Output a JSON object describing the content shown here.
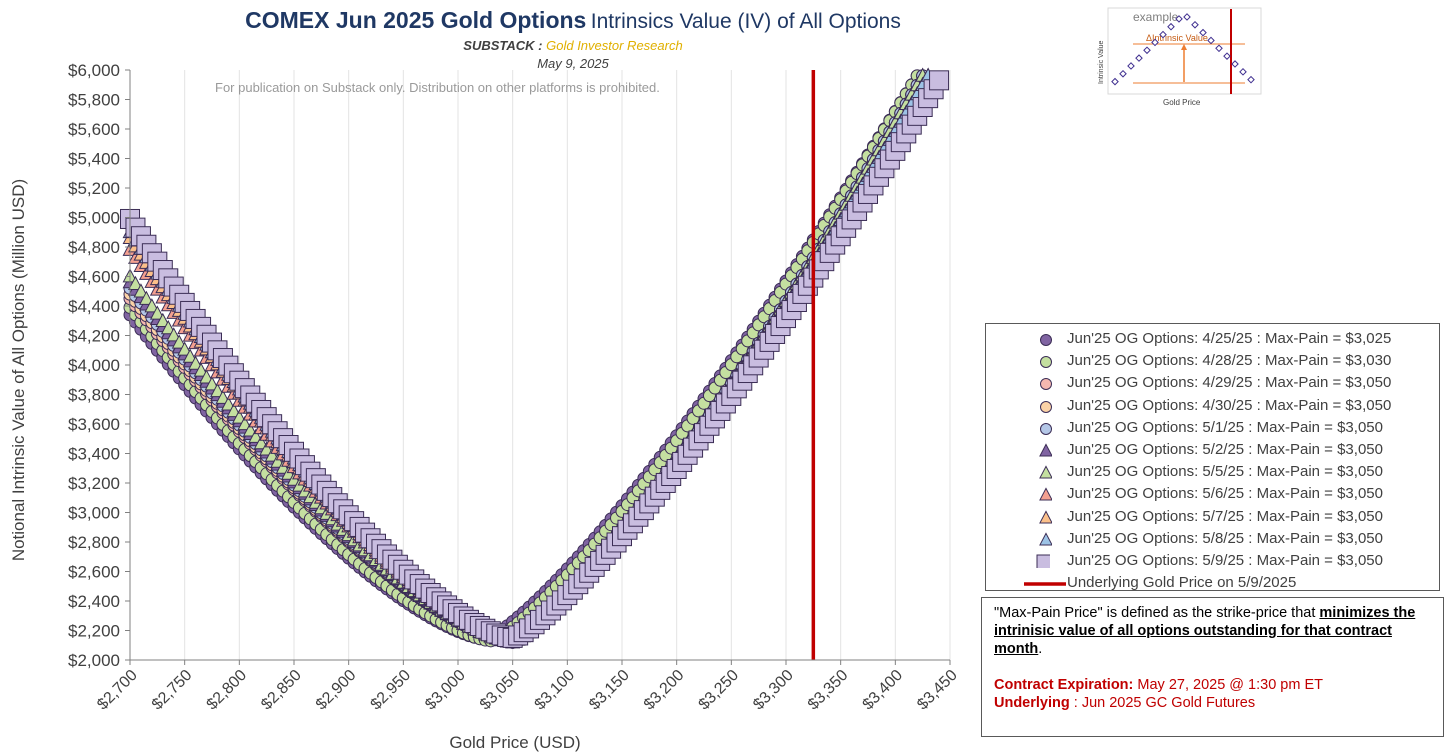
{
  "title": {
    "bold": "COMEX Jun 2025 Gold Options",
    "rest": "Intrinsics Value (IV) of All Options"
  },
  "subtitle": {
    "label": "SUBSTACK :",
    "value": "Gold Investor Research"
  },
  "date": "May 9, 2025",
  "watermark": "For publication on Substack only. Distribution on other platforms is prohibited.",
  "chart_data": {
    "type": "scatter",
    "xlabel": "Gold Price (USD)",
    "ylabel": "Notional Intrinsic Value of All Options (Million USD)",
    "xlim": [
      2700,
      3450
    ],
    "ylim": [
      2000,
      6000
    ],
    "x_ticks": [
      "$2,700",
      "$2,750",
      "$2,800",
      "$2,850",
      "$2,900",
      "$2,950",
      "$3,000",
      "$3,050",
      "$3,100",
      "$3,150",
      "$3,200",
      "$3,250",
      "$3,300",
      "$3,350",
      "$3,400",
      "$3,450"
    ],
    "y_ticks": [
      "$2,000",
      "$2,200",
      "$2,400",
      "$2,600",
      "$2,800",
      "$3,000",
      "$3,200",
      "$3,400",
      "$3,600",
      "$3,800",
      "$4,000",
      "$4,200",
      "$4,400",
      "$4,600",
      "$4,800",
      "$5,000",
      "$5,200",
      "$5,400",
      "$5,600",
      "$5,800",
      "$6,000"
    ],
    "x_tick_values": [
      2700,
      2750,
      2800,
      2850,
      2900,
      2950,
      3000,
      3050,
      3100,
      3150,
      3200,
      3250,
      3300,
      3350,
      3400,
      3450
    ],
    "y_tick_values": [
      2000,
      2200,
      2400,
      2600,
      2800,
      3000,
      3200,
      3400,
      3600,
      3800,
      4000,
      4200,
      4400,
      4600,
      4800,
      5000,
      5200,
      5400,
      5600,
      5800,
      6000
    ],
    "grid": "vertical",
    "x_step": 5,
    "underlying_price": 3325,
    "series": [
      {
        "name": "Jun'25 OG Options: 4/25/25 : Max-Pain = $3,025",
        "marker": "circle",
        "color": "#8064a2",
        "max_pain": 3025,
        "min_value": 2140,
        "left_value": 4340,
        "right_value": 5960,
        "right_end": 3420
      },
      {
        "name": "Jun'25 OG Options: 4/28/25 : Max-Pain = $3,030",
        "marker": "circle",
        "color": "#c4dfa0",
        "max_pain": 3030,
        "min_value": 2130,
        "left_value": 4390,
        "right_value": 5960,
        "right_end": 3420
      },
      {
        "name": "Jun'25 OG Options: 4/29/25 : Max-Pain = $3,050",
        "marker": "circle",
        "color": "#f4b8b0",
        "max_pain": 3050,
        "min_value": 2120,
        "left_value": 4450,
        "right_value": 5960,
        "right_end": 3425
      },
      {
        "name": "Jun'25 OG Options: 4/30/25 : Max-Pain = $3,050",
        "marker": "circle",
        "color": "#fbd2a6",
        "max_pain": 3050,
        "min_value": 2120,
        "left_value": 4480,
        "right_value": 5960,
        "right_end": 3425
      },
      {
        "name": "Jun'25 OG Options: 5/1/25 : Max-Pain = $3,050",
        "marker": "circle",
        "color": "#b4c7e7",
        "max_pain": 3050,
        "min_value": 2120,
        "left_value": 4520,
        "right_value": 5960,
        "right_end": 3425
      },
      {
        "name": "Jun'25 OG Options: 5/2/25 : Max-Pain = $3,050",
        "marker": "triangle",
        "color": "#8064a2",
        "max_pain": 3050,
        "min_value": 2120,
        "left_value": 4560,
        "right_value": 5960,
        "right_end": 3425
      },
      {
        "name": "Jun'25 OG Options: 5/5/25 : Max-Pain = $3,050",
        "marker": "triangle",
        "color": "#c4dfa0",
        "max_pain": 3050,
        "min_value": 2120,
        "left_value": 4600,
        "right_value": 5960,
        "right_end": 3425
      },
      {
        "name": "Jun'25 OG Options: 5/6/25 : Max-Pain = $3,050",
        "marker": "triangle",
        "color": "#f4a090",
        "max_pain": 3050,
        "min_value": 2130,
        "left_value": 4780,
        "right_value": 5960,
        "right_end": 3430
      },
      {
        "name": "Jun'25 OG Options: 5/7/25 : Max-Pain = $3,050",
        "marker": "triangle",
        "color": "#fbc08a",
        "max_pain": 3050,
        "min_value": 2130,
        "left_value": 4860,
        "right_value": 5960,
        "right_end": 3430
      },
      {
        "name": "Jun'25 OG Options: 5/8/25 : Max-Pain = $3,050",
        "marker": "triangle",
        "color": "#9dc3e6",
        "max_pain": 3050,
        "min_value": 2140,
        "left_value": 4900,
        "right_value": 5960,
        "right_end": 3430
      },
      {
        "name": "Jun'25 OG Options: 5/9/25 : Max-Pain = $3,050",
        "marker": "square",
        "color": "#c9bde0",
        "max_pain": 3050,
        "min_value": 2150,
        "left_value": 4990,
        "right_value": 5930,
        "right_end": 3440
      }
    ],
    "underlying_label": "Underlying Gold Price on 5/9/2025",
    "underlying_color": "#c00000"
  },
  "inset": {
    "title": "example",
    "ylabel": "Intrinsic Value",
    "xlabel": "Gold Price",
    "delta_label": "ΔIntrinsic Value"
  },
  "note": {
    "p1_pre": "\"Max-Pain Price\" is defined as the strike-price that ",
    "p1_bold": "minimizes the intrinisic value of all options outstanding for that contract month",
    "p1_post": ".",
    "exp_label": "Contract Expiration:",
    "exp_value": " May 27, 2025 @ 1:30 pm ET",
    "und_label": "Underlying",
    "und_value": " : Jun 2025 GC Gold Futures"
  }
}
